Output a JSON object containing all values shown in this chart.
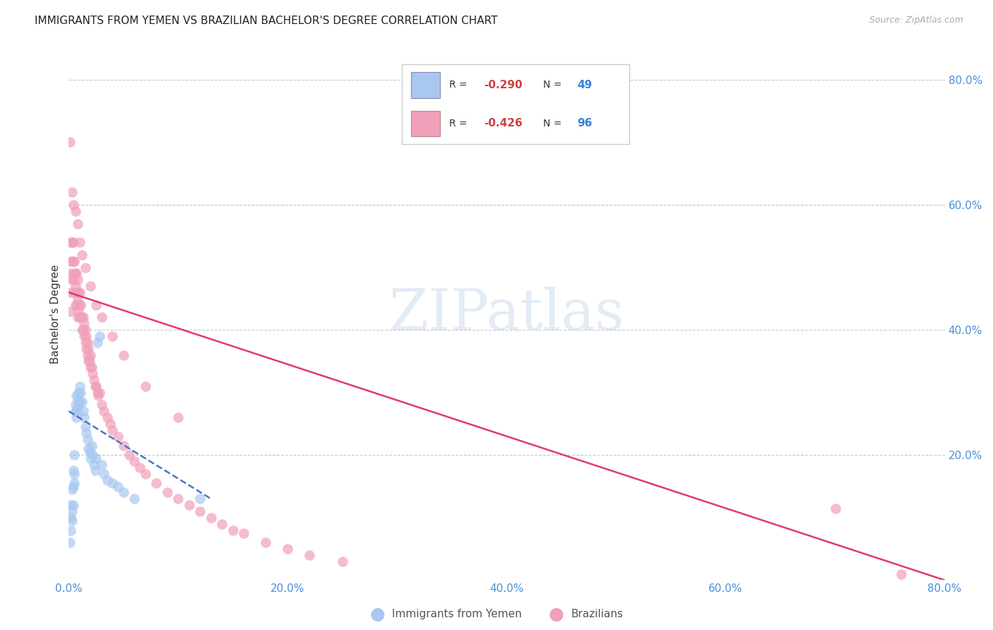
{
  "title": "IMMIGRANTS FROM YEMEN VS BRAZILIAN BACHELOR'S DEGREE CORRELATION CHART",
  "source": "Source: ZipAtlas.com",
  "ylabel": "Bachelor's Degree",
  "xlim": [
    0.0,
    0.8
  ],
  "ylim": [
    0.0,
    0.85
  ],
  "xtick_labels": [
    "0.0%",
    "20.0%",
    "40.0%",
    "60.0%",
    "80.0%"
  ],
  "xtick_vals": [
    0.0,
    0.2,
    0.4,
    0.6,
    0.8
  ],
  "ytick_labels": [
    "20.0%",
    "40.0%",
    "60.0%",
    "80.0%"
  ],
  "ytick_vals": [
    0.2,
    0.4,
    0.6,
    0.8
  ],
  "grid_color": "#c8c8c8",
  "background_color": "#ffffff",
  "legend_R1": "-0.290",
  "legend_N1": "49",
  "legend_R2": "-0.426",
  "legend_N2": "96",
  "label1": "Immigrants from Yemen",
  "label2": "Brazilians",
  "color1": "#a8c8f0",
  "color2": "#f0a0b8",
  "trendline1_color": "#4878c8",
  "trendline2_color": "#e03878",
  "yemen_x": [
    0.001,
    0.002,
    0.002,
    0.002,
    0.003,
    0.003,
    0.003,
    0.004,
    0.004,
    0.004,
    0.005,
    0.005,
    0.005,
    0.006,
    0.006,
    0.007,
    0.007,
    0.007,
    0.008,
    0.008,
    0.009,
    0.009,
    0.01,
    0.01,
    0.011,
    0.012,
    0.013,
    0.014,
    0.015,
    0.016,
    0.017,
    0.018,
    0.019,
    0.02,
    0.021,
    0.022,
    0.023,
    0.024,
    0.025,
    0.026,
    0.028,
    0.03,
    0.032,
    0.035,
    0.04,
    0.045,
    0.05,
    0.06,
    0.12
  ],
  "yemen_y": [
    0.06,
    0.08,
    0.1,
    0.12,
    0.095,
    0.11,
    0.145,
    0.12,
    0.15,
    0.175,
    0.155,
    0.17,
    0.2,
    0.27,
    0.28,
    0.26,
    0.27,
    0.295,
    0.275,
    0.29,
    0.28,
    0.3,
    0.285,
    0.31,
    0.3,
    0.285,
    0.27,
    0.26,
    0.245,
    0.235,
    0.225,
    0.21,
    0.205,
    0.195,
    0.215,
    0.2,
    0.185,
    0.175,
    0.195,
    0.38,
    0.39,
    0.185,
    0.17,
    0.16,
    0.155,
    0.15,
    0.14,
    0.13,
    0.13
  ],
  "brazil_x": [
    0.001,
    0.001,
    0.002,
    0.002,
    0.002,
    0.003,
    0.003,
    0.003,
    0.004,
    0.004,
    0.004,
    0.005,
    0.005,
    0.005,
    0.006,
    0.006,
    0.006,
    0.007,
    0.007,
    0.007,
    0.008,
    0.008,
    0.008,
    0.009,
    0.009,
    0.01,
    0.01,
    0.01,
    0.011,
    0.011,
    0.012,
    0.012,
    0.013,
    0.013,
    0.014,
    0.014,
    0.015,
    0.015,
    0.016,
    0.016,
    0.017,
    0.017,
    0.018,
    0.018,
    0.019,
    0.02,
    0.02,
    0.021,
    0.022,
    0.023,
    0.024,
    0.025,
    0.026,
    0.027,
    0.028,
    0.03,
    0.032,
    0.035,
    0.038,
    0.04,
    0.045,
    0.05,
    0.055,
    0.06,
    0.065,
    0.07,
    0.08,
    0.09,
    0.1,
    0.11,
    0.12,
    0.13,
    0.14,
    0.15,
    0.16,
    0.18,
    0.2,
    0.22,
    0.25,
    0.7,
    0.001,
    0.003,
    0.004,
    0.006,
    0.008,
    0.01,
    0.012,
    0.015,
    0.02,
    0.025,
    0.03,
    0.04,
    0.05,
    0.07,
    0.1,
    0.76
  ],
  "brazil_y": [
    0.43,
    0.49,
    0.46,
    0.51,
    0.54,
    0.48,
    0.51,
    0.54,
    0.48,
    0.51,
    0.54,
    0.46,
    0.49,
    0.51,
    0.44,
    0.47,
    0.49,
    0.44,
    0.46,
    0.49,
    0.42,
    0.45,
    0.48,
    0.43,
    0.46,
    0.42,
    0.44,
    0.46,
    0.42,
    0.44,
    0.4,
    0.42,
    0.4,
    0.42,
    0.39,
    0.41,
    0.38,
    0.4,
    0.37,
    0.39,
    0.36,
    0.38,
    0.35,
    0.37,
    0.35,
    0.34,
    0.36,
    0.34,
    0.33,
    0.32,
    0.31,
    0.31,
    0.3,
    0.295,
    0.3,
    0.28,
    0.27,
    0.26,
    0.25,
    0.24,
    0.23,
    0.215,
    0.2,
    0.19,
    0.18,
    0.17,
    0.155,
    0.14,
    0.13,
    0.12,
    0.11,
    0.1,
    0.09,
    0.08,
    0.075,
    0.06,
    0.05,
    0.04,
    0.03,
    0.115,
    0.7,
    0.62,
    0.6,
    0.59,
    0.57,
    0.54,
    0.52,
    0.5,
    0.47,
    0.44,
    0.42,
    0.39,
    0.36,
    0.31,
    0.26,
    0.01
  ],
  "trendline1_x0": 0.0,
  "trendline1_x1": 0.13,
  "trendline1_y0": 0.27,
  "trendline1_y1": 0.13,
  "trendline2_x0": 0.0,
  "trendline2_x1": 0.8,
  "trendline2_y0": 0.46,
  "trendline2_y1": 0.0
}
